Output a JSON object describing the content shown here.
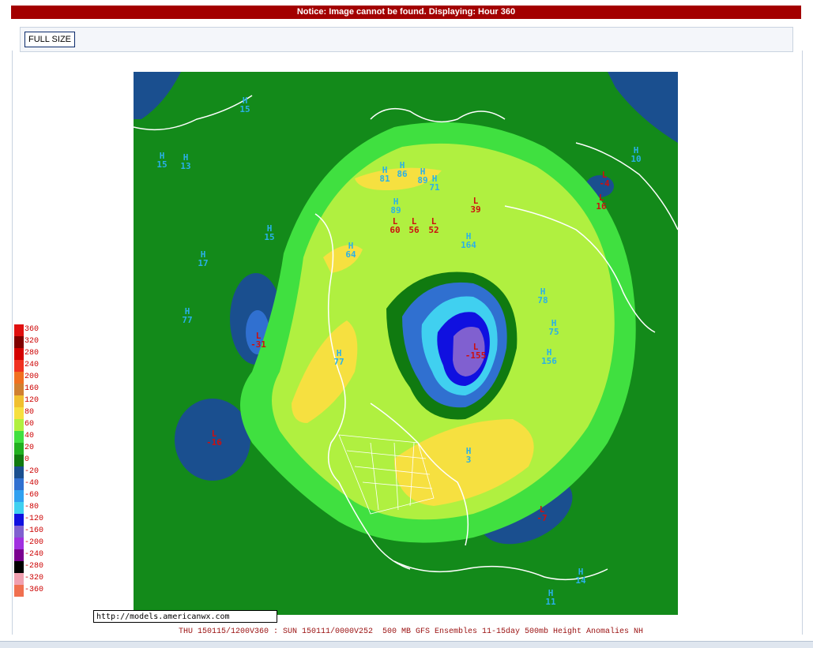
{
  "notice": "Notice: Image cannot be found. Displaying: Hour 360",
  "toolbar": {
    "fullsize_label": "FULL SIZE"
  },
  "legend": {
    "levels": [
      {
        "label": "360",
        "color": "#e01010"
      },
      {
        "label": "320",
        "color": "#800000"
      },
      {
        "label": "280",
        "color": "#d40000"
      },
      {
        "label": "240",
        "color": "#f03020"
      },
      {
        "label": "200",
        "color": "#f07020"
      },
      {
        "label": "160",
        "color": "#d08030"
      },
      {
        "label": "120",
        "color": "#f0c030"
      },
      {
        "label": "80",
        "color": "#f6e040"
      },
      {
        "label": "60",
        "color": "#b0f040"
      },
      {
        "label": "40",
        "color": "#40e040"
      },
      {
        "label": "20",
        "color": "#20b020"
      },
      {
        "label": "0",
        "color": "#107a10"
      },
      {
        "label": "-20",
        "color": "#1a4f8f"
      },
      {
        "label": "-40",
        "color": "#3070d0"
      },
      {
        "label": "-60",
        "color": "#30a0f0"
      },
      {
        "label": "-80",
        "color": "#40d0f0"
      },
      {
        "label": "-120",
        "color": "#1010e0"
      },
      {
        "label": "-160",
        "color": "#8060d0"
      },
      {
        "label": "-200",
        "color": "#a030e0"
      },
      {
        "label": "-240",
        "color": "#7a0090"
      },
      {
        "label": "-280",
        "color": "#000000"
      },
      {
        "label": "-320",
        "color": "#f0a0b0"
      },
      {
        "label": "-360",
        "color": "#f07050"
      }
    ]
  },
  "map_labels": {
    "highs": [
      {
        "letter": "H",
        "value": "15"
      },
      {
        "letter": "H",
        "value": "15"
      },
      {
        "letter": "H",
        "value": "13"
      },
      {
        "letter": "H",
        "value": "15"
      },
      {
        "letter": "H",
        "value": "17"
      },
      {
        "letter": "H",
        "value": "77"
      },
      {
        "letter": "H",
        "value": "81"
      },
      {
        "letter": "H",
        "value": "86"
      },
      {
        "letter": "H",
        "value": "89"
      },
      {
        "letter": "H",
        "value": "71"
      },
      {
        "letter": "H",
        "value": "89"
      },
      {
        "letter": "H",
        "value": "64"
      },
      {
        "letter": "H",
        "value": "164"
      },
      {
        "letter": "H",
        "value": "77"
      },
      {
        "letter": "H",
        "value": "78"
      },
      {
        "letter": "H",
        "value": "75"
      },
      {
        "letter": "H",
        "value": "156"
      },
      {
        "letter": "H",
        "value": "3"
      },
      {
        "letter": "H",
        "value": "10"
      },
      {
        "letter": "H",
        "value": "14"
      },
      {
        "letter": "H",
        "value": "11"
      }
    ],
    "lows": [
      {
        "letter": "L",
        "value": "-31"
      },
      {
        "letter": "L",
        "value": "-16"
      },
      {
        "letter": "L",
        "value": "60"
      },
      {
        "letter": "L",
        "value": "56"
      },
      {
        "letter": "L",
        "value": "52"
      },
      {
        "letter": "L",
        "value": "39"
      },
      {
        "letter": "L",
        "value": "-155"
      },
      {
        "letter": "L",
        "value": "-7"
      },
      {
        "letter": "L",
        "value": "-4"
      },
      {
        "letter": "L",
        "value": "16"
      }
    ]
  },
  "source_url": "http://models.americanwx.com",
  "caption": "THU 150115/1200V360 : SUN 150111/0000V252  500 MB GFS Ensembles 11-15day 500mb Height Anomalies NH"
}
